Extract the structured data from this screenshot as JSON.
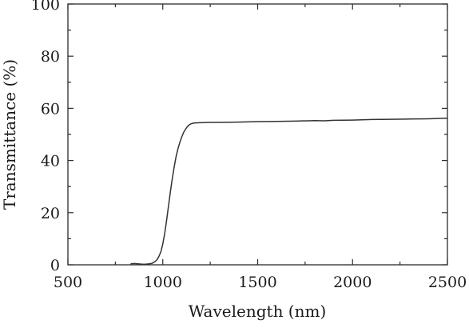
{
  "chart_data": {
    "type": "line",
    "title": "",
    "xlabel": "Wavelength (nm)",
    "ylabel": "Transmittance (%)",
    "xlim": [
      500,
      2500
    ],
    "ylim": [
      0,
      100
    ],
    "x_ticks": [
      500,
      1000,
      1500,
      2000,
      2500
    ],
    "y_ticks": [
      0,
      20,
      40,
      60,
      80,
      100
    ],
    "x_minor_step": 250,
    "y_minor_step": 10,
    "grid": false,
    "legend": "none",
    "series": [
      {
        "color": "#333333",
        "x": [
          830,
          850,
          880,
          900,
          920,
          940,
          950,
          960,
          970,
          980,
          990,
          1000,
          1010,
          1020,
          1030,
          1040,
          1050,
          1060,
          1070,
          1080,
          1090,
          1100,
          1110,
          1120,
          1130,
          1140,
          1150,
          1160,
          1170,
          1180,
          1190,
          1200,
          1250,
          1300,
          1400,
          1500,
          1600,
          1700,
          1800,
          1850,
          1900,
          2000,
          2100,
          2200,
          2300,
          2400,
          2500
        ],
        "y": [
          0.4,
          0.5,
          0.3,
          0.2,
          0.3,
          0.5,
          0.8,
          1.3,
          2.0,
          3.3,
          5.0,
          8.0,
          12.0,
          17.0,
          22.5,
          28.0,
          33.0,
          37.5,
          41.5,
          44.5,
          47.0,
          49.0,
          50.8,
          52.0,
          53.0,
          53.7,
          54.1,
          54.3,
          54.4,
          54.4,
          54.5,
          54.5,
          54.6,
          54.6,
          54.7,
          54.9,
          55.0,
          55.1,
          55.3,
          55.2,
          55.4,
          55.5,
          55.7,
          55.8,
          55.9,
          56.0,
          56.2
        ]
      }
    ]
  }
}
